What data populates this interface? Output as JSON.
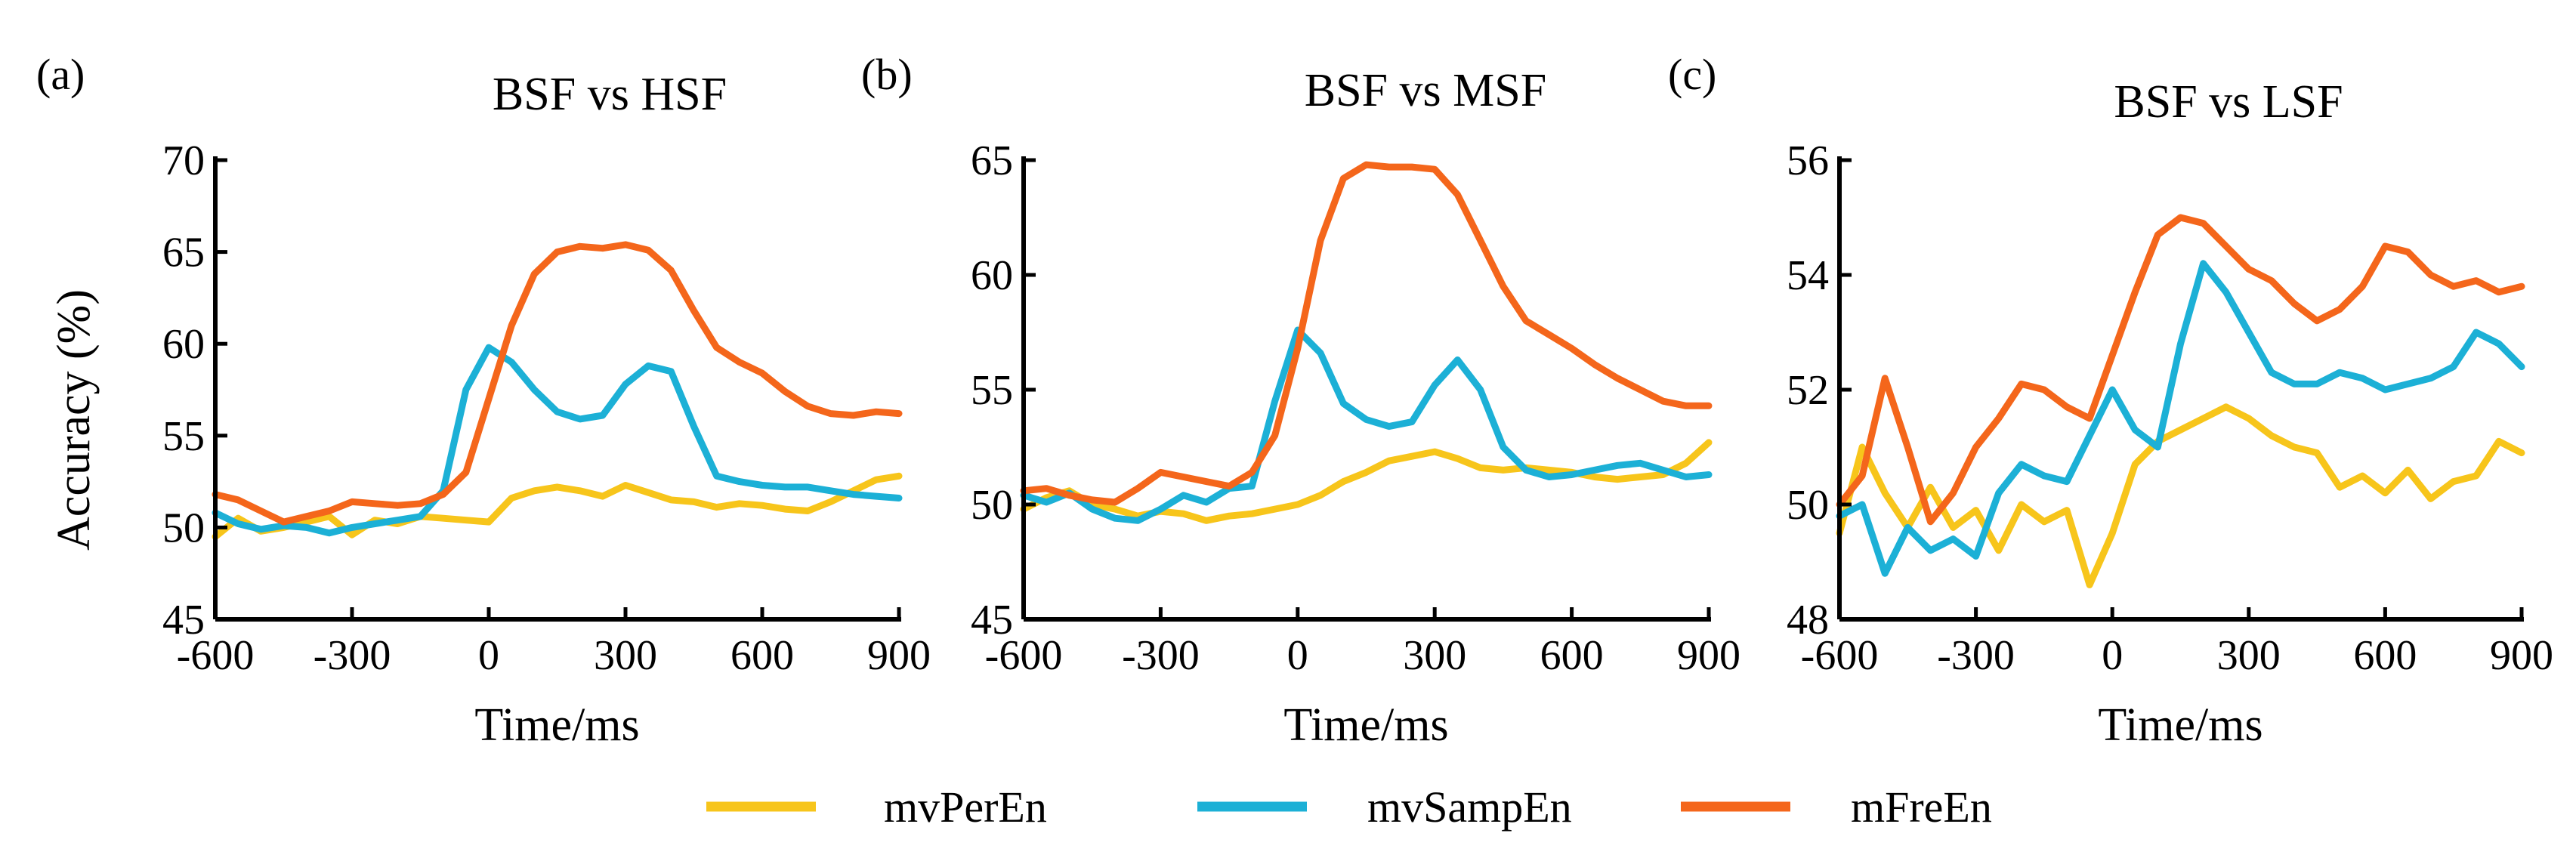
{
  "chart_data": [
    {
      "type": "line",
      "panel_label": "(a)",
      "title": "BSF vs HSF",
      "xlabel": "Time/ms",
      "ylabel": "Accuracy (%)",
      "xlim": [
        -600,
        900
      ],
      "ylim": [
        45,
        70
      ],
      "xticks": [
        -600,
        -300,
        0,
        300,
        600,
        900
      ],
      "yticks": [
        45,
        50,
        55,
        60,
        65,
        70
      ],
      "xtick_labels": [
        "-600",
        "-300",
        "0",
        "300",
        "600",
        "900"
      ],
      "ytick_labels": [
        "45",
        "50",
        "55",
        "60",
        "65",
        "70"
      ],
      "series": [
        {
          "name": "mvPerEn",
          "color": "#F7C51B",
          "x": [
            -600,
            -550,
            -500,
            -450,
            -400,
            -350,
            -300,
            -250,
            -200,
            -150,
            -100,
            -50,
            0,
            50,
            100,
            150,
            200,
            250,
            300,
            350,
            400,
            450,
            500,
            550,
            600,
            650,
            700,
            750,
            800,
            850,
            900
          ],
          "y": [
            49.5,
            50.5,
            49.8,
            50.0,
            50.3,
            50.6,
            49.6,
            50.4,
            50.2,
            50.6,
            50.5,
            50.4,
            50.3,
            51.6,
            52.0,
            52.2,
            52.0,
            51.7,
            52.3,
            51.9,
            51.5,
            51.4,
            51.1,
            51.3,
            51.2,
            51.0,
            50.9,
            51.4,
            52.0,
            52.6,
            52.8
          ]
        },
        {
          "name": "mvSampEn",
          "color": "#1CB0D6",
          "x": [
            -600,
            -550,
            -500,
            -450,
            -400,
            -350,
            -300,
            -250,
            -200,
            -150,
            -100,
            -50,
            0,
            50,
            100,
            150,
            200,
            250,
            300,
            350,
            400,
            450,
            500,
            550,
            600,
            650,
            700,
            750,
            800,
            850,
            900
          ],
          "y": [
            50.8,
            50.2,
            49.9,
            50.1,
            50.0,
            49.7,
            50.0,
            50.2,
            50.4,
            50.6,
            52.0,
            57.5,
            59.8,
            59.0,
            57.5,
            56.3,
            55.9,
            56.1,
            57.8,
            58.8,
            58.5,
            55.5,
            52.8,
            52.5,
            52.3,
            52.2,
            52.2,
            52.0,
            51.8,
            51.7,
            51.6
          ]
        },
        {
          "name": "mFreEn",
          "color": "#F4661B",
          "x": [
            -600,
            -550,
            -500,
            -450,
            -400,
            -350,
            -300,
            -250,
            -200,
            -150,
            -100,
            -50,
            0,
            50,
            100,
            150,
            200,
            250,
            300,
            350,
            400,
            450,
            500,
            550,
            600,
            650,
            700,
            750,
            800,
            850,
            900
          ],
          "y": [
            51.8,
            51.5,
            50.9,
            50.3,
            50.6,
            50.9,
            51.4,
            51.3,
            51.2,
            51.3,
            51.8,
            53.0,
            57.0,
            61.0,
            63.8,
            65.0,
            65.3,
            65.2,
            65.4,
            65.1,
            64.0,
            61.8,
            59.8,
            59.0,
            58.4,
            57.4,
            56.6,
            56.2,
            56.1,
            56.3,
            56.2
          ]
        }
      ]
    },
    {
      "type": "line",
      "panel_label": "(b)",
      "title": "BSF vs MSF",
      "xlabel": "Time/ms",
      "ylabel": "",
      "xlim": [
        -600,
        900
      ],
      "ylim": [
        45,
        65
      ],
      "xticks": [
        -600,
        -300,
        0,
        300,
        600,
        900
      ],
      "yticks": [
        45,
        50,
        55,
        60,
        65
      ],
      "xtick_labels": [
        "-600",
        "-300",
        "0",
        "300",
        "600",
        "900"
      ],
      "ytick_labels": [
        "45",
        "50",
        "55",
        "60",
        "65"
      ],
      "series": [
        {
          "name": "mvPerEn",
          "color": "#F7C51B",
          "x": [
            -600,
            -550,
            -500,
            -450,
            -400,
            -350,
            -300,
            -250,
            -200,
            -150,
            -100,
            -50,
            0,
            50,
            100,
            150,
            200,
            250,
            300,
            350,
            400,
            450,
            500,
            550,
            600,
            650,
            700,
            750,
            800,
            850,
            900
          ],
          "y": [
            49.8,
            50.3,
            50.6,
            50.0,
            49.8,
            49.5,
            49.7,
            49.6,
            49.3,
            49.5,
            49.6,
            49.8,
            50.0,
            50.4,
            51.0,
            51.4,
            51.9,
            52.1,
            52.3,
            52.0,
            51.6,
            51.5,
            51.6,
            51.5,
            51.4,
            51.2,
            51.1,
            51.2,
            51.3,
            51.8,
            52.7
          ]
        },
        {
          "name": "mvSampEn",
          "color": "#1CB0D6",
          "x": [
            -600,
            -550,
            -500,
            -450,
            -400,
            -350,
            -300,
            -250,
            -200,
            -150,
            -100,
            -50,
            0,
            50,
            100,
            150,
            200,
            250,
            300,
            350,
            400,
            450,
            500,
            550,
            600,
            650,
            700,
            750,
            800,
            850,
            900
          ],
          "y": [
            50.4,
            50.1,
            50.5,
            49.8,
            49.4,
            49.3,
            49.8,
            50.4,
            50.1,
            50.7,
            50.8,
            54.5,
            57.6,
            56.6,
            54.4,
            53.7,
            53.4,
            53.6,
            55.2,
            56.3,
            55.0,
            52.5,
            51.5,
            51.2,
            51.3,
            51.5,
            51.7,
            51.8,
            51.5,
            51.2,
            51.3
          ]
        },
        {
          "name": "mFreEn",
          "color": "#F4661B",
          "x": [
            -600,
            -550,
            -500,
            -450,
            -400,
            -350,
            -300,
            -250,
            -200,
            -150,
            -100,
            -50,
            0,
            50,
            100,
            150,
            200,
            250,
            300,
            350,
            400,
            450,
            500,
            550,
            600,
            650,
            700,
            750,
            800,
            850,
            900
          ],
          "y": [
            50.6,
            50.7,
            50.4,
            50.2,
            50.1,
            50.7,
            51.4,
            51.2,
            51.0,
            50.8,
            51.4,
            53.0,
            56.8,
            61.5,
            64.2,
            64.8,
            64.7,
            64.7,
            64.6,
            63.5,
            61.5,
            59.5,
            58.0,
            57.4,
            56.8,
            56.1,
            55.5,
            55.0,
            54.5,
            54.3,
            54.3
          ]
        }
      ]
    },
    {
      "type": "line",
      "panel_label": "(c)",
      "title": "BSF vs LSF",
      "xlabel": "Time/ms",
      "ylabel": "",
      "xlim": [
        -600,
        900
      ],
      "ylim": [
        48,
        56
      ],
      "xticks": [
        -600,
        -300,
        0,
        300,
        600,
        900
      ],
      "yticks": [
        48,
        50,
        52,
        54,
        56
      ],
      "xtick_labels": [
        "-600",
        "-300",
        "0",
        "300",
        "600",
        "900"
      ],
      "ytick_labels": [
        "48",
        "50",
        "52",
        "54",
        "56"
      ],
      "series": [
        {
          "name": "mvPerEn",
          "color": "#F7C51B",
          "x": [
            -600,
            -550,
            -500,
            -450,
            -400,
            -350,
            -300,
            -250,
            -200,
            -150,
            -100,
            -50,
            0,
            50,
            100,
            150,
            200,
            250,
            300,
            350,
            400,
            450,
            500,
            550,
            600,
            650,
            700,
            750,
            800,
            850,
            900
          ],
          "y": [
            49.5,
            51.0,
            50.2,
            49.6,
            50.3,
            49.6,
            49.9,
            49.2,
            50.0,
            49.7,
            49.9,
            48.6,
            49.5,
            50.7,
            51.1,
            51.3,
            51.5,
            51.7,
            51.5,
            51.2,
            51.0,
            50.9,
            50.3,
            50.5,
            50.2,
            50.6,
            50.1,
            50.4,
            50.5,
            51.1,
            50.9
          ]
        },
        {
          "name": "mvSampEn",
          "color": "#1CB0D6",
          "x": [
            -600,
            -550,
            -500,
            -450,
            -400,
            -350,
            -300,
            -250,
            -200,
            -150,
            -100,
            -50,
            0,
            50,
            100,
            150,
            200,
            250,
            300,
            350,
            400,
            450,
            500,
            550,
            600,
            650,
            700,
            750,
            800,
            850,
            900
          ],
          "y": [
            49.8,
            50.0,
            48.8,
            49.6,
            49.2,
            49.4,
            49.1,
            50.2,
            50.7,
            50.5,
            50.4,
            51.2,
            52.0,
            51.3,
            51.0,
            52.8,
            54.2,
            53.7,
            53.0,
            52.3,
            52.1,
            52.1,
            52.3,
            52.2,
            52.0,
            52.1,
            52.2,
            52.4,
            53.0,
            52.8,
            52.4
          ]
        },
        {
          "name": "mFreEn",
          "color": "#F4661B",
          "x": [
            -600,
            -550,
            -500,
            -450,
            -400,
            -350,
            -300,
            -250,
            -200,
            -150,
            -100,
            -50,
            0,
            50,
            100,
            150,
            200,
            250,
            300,
            350,
            400,
            450,
            500,
            550,
            600,
            650,
            700,
            750,
            800,
            850,
            900
          ],
          "y": [
            50.0,
            50.5,
            52.2,
            51.0,
            49.7,
            50.2,
            51.0,
            51.5,
            52.1,
            52.0,
            51.7,
            51.5,
            52.6,
            53.7,
            54.7,
            55.0,
            54.9,
            54.5,
            54.1,
            53.9,
            53.5,
            53.2,
            53.4,
            53.8,
            54.5,
            54.4,
            54.0,
            53.8,
            53.9,
            53.7,
            53.8
          ]
        }
      ]
    }
  ],
  "legend": {
    "items": [
      {
        "label": "mvPerEn",
        "color": "#F7C51B"
      },
      {
        "label": "mvSampEn",
        "color": "#1CB0D6"
      },
      {
        "label": "mFreEn",
        "color": "#F4661B"
      }
    ]
  }
}
